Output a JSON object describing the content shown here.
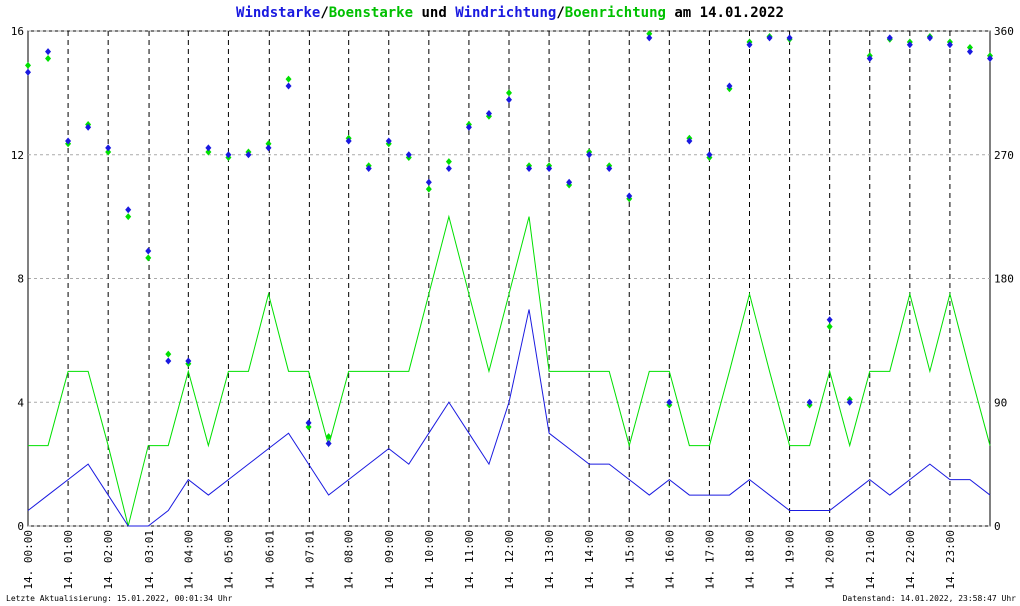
{
  "chart_data": {
    "type": "line",
    "title": {
      "sep": "/",
      "and": " und ",
      "date": " am 14.01.2022"
    },
    "footer_left": "Letzte Aktualisierung: 15.01.2022, 00:01:34 Uhr",
    "footer_right": "Datenstand: 14.01.2022, 23:58:47 Uhr",
    "x": [
      0,
      0.5,
      1,
      1.5,
      2,
      2.5,
      3,
      3.5,
      4,
      4.5,
      5,
      5.5,
      6,
      6.5,
      7,
      7.5,
      8,
      8.5,
      9,
      9.5,
      10,
      10.5,
      11,
      11.5,
      12,
      12.5,
      13,
      13.5,
      14,
      14.5,
      15,
      15.5,
      16,
      16.5,
      17,
      17.5,
      18,
      18.5,
      19,
      19.5,
      20,
      20.5,
      21,
      21.5,
      22,
      22.5,
      23,
      23.5,
      24
    ],
    "xlim": [
      0,
      24
    ],
    "xticks": [
      {
        "value": 0,
        "label": "14. 00:00"
      },
      {
        "value": 1,
        "label": "14. 01:00"
      },
      {
        "value": 2,
        "label": "14. 02:00"
      },
      {
        "value": 3.02,
        "label": "14. 03:01"
      },
      {
        "value": 4,
        "label": "14. 04:00"
      },
      {
        "value": 5,
        "label": "14. 05:00"
      },
      {
        "value": 6.02,
        "label": "14. 06:01"
      },
      {
        "value": 7.02,
        "label": "14. 07:01"
      },
      {
        "value": 8,
        "label": "14. 08:00"
      },
      {
        "value": 9,
        "label": "14. 09:00"
      },
      {
        "value": 10,
        "label": "14. 10:00"
      },
      {
        "value": 11,
        "label": "14. 11:00"
      },
      {
        "value": 12,
        "label": "14. 12:00"
      },
      {
        "value": 13,
        "label": "14. 13:00"
      },
      {
        "value": 14,
        "label": "14. 14:00"
      },
      {
        "value": 15,
        "label": "14. 15:00"
      },
      {
        "value": 16,
        "label": "14. 16:00"
      },
      {
        "value": 17,
        "label": "14. 17:00"
      },
      {
        "value": 18,
        "label": "14. 18:00"
      },
      {
        "value": 19,
        "label": "14. 19:00"
      },
      {
        "value": 20,
        "label": "14. 20:00"
      },
      {
        "value": 21,
        "label": "14. 21:00"
      },
      {
        "value": 22,
        "label": "14. 22:00"
      },
      {
        "value": 23,
        "label": "14. 23:00"
      }
    ],
    "ylim": [
      0,
      16
    ],
    "yticks": [
      0,
      4,
      8,
      12,
      16
    ],
    "y2lim": [
      0,
      360
    ],
    "y2ticks": [
      0,
      90,
      180,
      270,
      360
    ],
    "grid": true,
    "series": [
      {
        "name": "Boenstarke",
        "color": "#00e000",
        "type": "line",
        "values": [
          2.6,
          2.6,
          5,
          5,
          2.6,
          0,
          2.6,
          2.6,
          5,
          2.6,
          5,
          5,
          7.5,
          5,
          5,
          2.6,
          5,
          5,
          5,
          5,
          7.5,
          10,
          7.5,
          5,
          7.5,
          10,
          5,
          5,
          5,
          5,
          2.6,
          5,
          5,
          2.6,
          2.6,
          5,
          7.5,
          5,
          2.6,
          2.6,
          5,
          2.6,
          5,
          5,
          7.5,
          5,
          7.5,
          5,
          2.6
        ]
      },
      {
        "name": "Windstarke",
        "color": "#1a1ae0",
        "type": "line",
        "values": [
          0.5,
          1,
          1.5,
          2,
          1,
          0,
          0,
          0.5,
          1.5,
          1,
          1.5,
          2,
          2.5,
          3,
          2,
          1,
          1.5,
          2,
          2.5,
          2,
          3,
          4,
          3,
          2,
          4,
          7,
          3,
          2.5,
          2,
          2,
          1.5,
          1,
          1.5,
          1,
          1,
          1,
          1.5,
          1,
          0.5,
          0.5,
          0.5,
          1,
          1.5,
          1,
          1.5,
          2,
          1.5,
          1.5,
          1
        ]
      },
      {
        "name": "Boenrichtung",
        "color": "#00e000",
        "type": "scatter",
        "axis": "y2",
        "values": [
          335,
          340,
          278,
          292,
          272,
          225,
          195,
          125,
          118,
          272,
          268,
          272,
          278,
          325,
          72,
          65,
          282,
          262,
          278,
          268,
          245,
          265,
          292,
          298,
          315,
          262,
          262,
          248,
          272,
          262,
          238,
          358,
          88,
          282,
          268,
          318,
          352,
          356,
          354,
          88,
          145,
          92,
          342,
          354,
          352,
          356,
          352,
          348,
          342
        ]
      },
      {
        "name": "Windrichtung",
        "color": "#1a1ae0",
        "type": "scatter",
        "axis": "y2",
        "values": [
          330,
          345,
          280,
          290,
          275,
          230,
          200,
          120,
          120,
          275,
          270,
          270,
          275,
          320,
          75,
          60,
          280,
          260,
          280,
          270,
          250,
          260,
          290,
          300,
          310,
          260,
          260,
          250,
          270,
          260,
          240,
          355,
          90,
          280,
          270,
          320,
          350,
          355,
          355,
          90,
          150,
          90,
          340,
          355,
          350,
          355,
          350,
          345,
          340
        ]
      }
    ]
  }
}
